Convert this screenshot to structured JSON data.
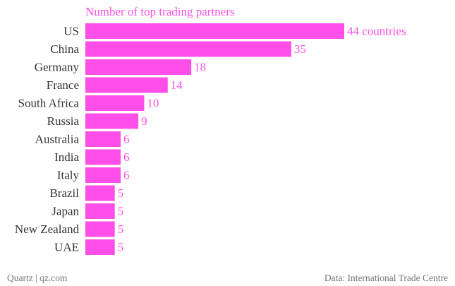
{
  "chart_data": {
    "type": "bar",
    "orientation": "horizontal",
    "title": "Number of top trading partners",
    "categories": [
      "US",
      "China",
      "Germany",
      "France",
      "South Africa",
      "Russia",
      "Australia",
      "India",
      "Italy",
      "Brazil",
      "Japan",
      "New Zealand",
      "UAE"
    ],
    "values": [
      44,
      35,
      18,
      14,
      10,
      9,
      6,
      6,
      6,
      5,
      5,
      5,
      5
    ],
    "data_labels": [
      "44 countries",
      "35",
      "18",
      "14",
      "10",
      "9",
      "6",
      "6",
      "6",
      "5",
      "5",
      "5",
      "5"
    ],
    "xlim": [
      0,
      44
    ],
    "grid": false,
    "legend": "none"
  },
  "colors": {
    "bar": "#ff4fe8",
    "label": "#ff4fe8",
    "category": "#333333",
    "footer": "#777777"
  },
  "footer": {
    "source_left": "Quartz | qz.com",
    "source_right": "Data: International Trade Centre"
  }
}
